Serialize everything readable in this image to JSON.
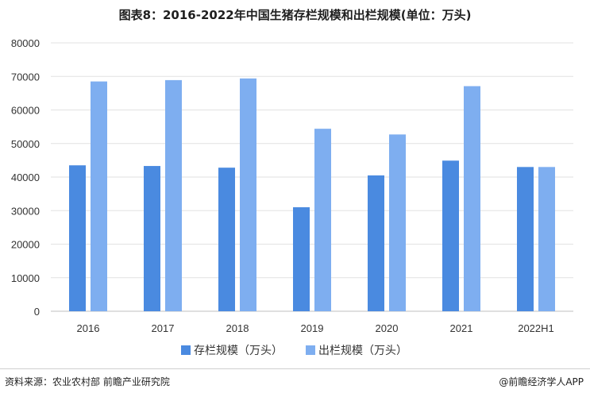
{
  "chart_data": {
    "type": "bar",
    "title": "图表8：2016-2022年中国生猪存栏规模和出栏规模(单位：万头)",
    "categories": [
      "2016",
      "2017",
      "2018",
      "2019",
      "2020",
      "2021",
      "2022H1"
    ],
    "series": [
      {
        "name": "存栏规模（万头）",
        "values": [
          43500,
          43300,
          42800,
          31000,
          40500,
          44900,
          43000
        ],
        "color": "#4a8ae0"
      },
      {
        "name": "出栏规模（万头）",
        "values": [
          68500,
          68900,
          69400,
          54400,
          52700,
          67100,
          43000
        ],
        "color": "#7eaef0"
      }
    ],
    "yticks": [
      "0",
      "10000",
      "20000",
      "30000",
      "40000",
      "50000",
      "60000",
      "70000",
      "80000"
    ],
    "ylim": [
      0,
      80000
    ],
    "grid": true,
    "legend": "bottom-center"
  },
  "footer": {
    "source": "资料来源：农业农村部 前瞻产业研究院",
    "brand": "@前瞻经济学人APP"
  }
}
